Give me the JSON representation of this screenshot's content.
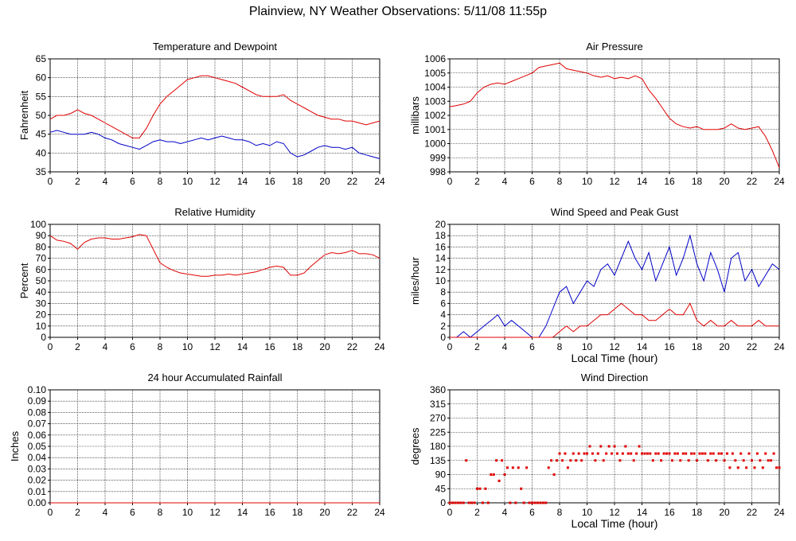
{
  "page": {
    "title": "Plainview, NY Weather Observations: 5/11/08 11:55p"
  },
  "colors": {
    "red": "#e00000",
    "blue": "#0000c8",
    "grid": "#000000"
  },
  "chart_data": [
    {
      "id": "temp",
      "type": "line",
      "title": "Temperature and Dewpoint",
      "xlabel": "",
      "ylabel": "Fahrenheit",
      "xlim": [
        0,
        24
      ],
      "ylim": [
        35,
        65
      ],
      "xticks": [
        0,
        2,
        4,
        6,
        8,
        10,
        12,
        14,
        16,
        18,
        20,
        22,
        24
      ],
      "yticks": [
        35,
        40,
        45,
        50,
        55,
        60,
        65
      ],
      "grid": true,
      "series": [
        {
          "color": "red",
          "style": "line",
          "x": [
            0,
            0.5,
            1,
            1.5,
            2,
            2.5,
            3,
            3.5,
            4,
            4.5,
            5,
            5.5,
            6,
            6.5,
            7,
            7.5,
            8,
            8.5,
            9,
            9.5,
            10,
            10.5,
            11,
            11.5,
            12,
            12.5,
            13,
            13.5,
            14,
            14.5,
            15,
            15.5,
            16,
            16.5,
            17,
            17.5,
            18,
            18.5,
            19,
            19.5,
            20,
            20.5,
            21,
            21.5,
            22,
            22.5,
            23,
            23.5,
            24
          ],
          "y": [
            49,
            50,
            50,
            50.5,
            51.5,
            50.5,
            50,
            49,
            48,
            47,
            46,
            45,
            44,
            44,
            46.5,
            50,
            53,
            55,
            56.5,
            58,
            59.5,
            60,
            60.5,
            60.5,
            60,
            59.5,
            59,
            58.5,
            57.5,
            56.5,
            55.5,
            55,
            55,
            55,
            55.5,
            54,
            53,
            52,
            51,
            50,
            49.5,
            49,
            49,
            48.5,
            48.5,
            48,
            47.5,
            48,
            48.5
          ]
        },
        {
          "color": "blue",
          "style": "line",
          "x": [
            0,
            0.5,
            1,
            1.5,
            2,
            2.5,
            3,
            3.5,
            4,
            4.5,
            5,
            5.5,
            6,
            6.5,
            7,
            7.5,
            8,
            8.5,
            9,
            9.5,
            10,
            10.5,
            11,
            11.5,
            12,
            12.5,
            13,
            13.5,
            14,
            14.5,
            15,
            15.5,
            16,
            16.5,
            17,
            17.5,
            18,
            18.5,
            19,
            19.5,
            20,
            20.5,
            21,
            21.5,
            22,
            22.5,
            23,
            23.5,
            24
          ],
          "y": [
            45.5,
            46,
            45.5,
            45,
            45,
            45,
            45.5,
            45,
            44,
            43.5,
            42.5,
            42,
            41.5,
            41,
            42,
            43,
            43.5,
            43,
            43,
            42.5,
            43,
            43.5,
            44,
            43.5,
            44,
            44.5,
            44,
            43.5,
            43.5,
            43,
            42,
            42.5,
            42,
            43,
            42.5,
            40,
            39,
            39.5,
            40.5,
            41.5,
            42,
            41.5,
            41.5,
            41,
            41.5,
            40,
            39.5,
            39,
            38.5
          ]
        }
      ]
    },
    {
      "id": "pressure",
      "type": "line",
      "title": "Air Pressure",
      "xlabel": "",
      "ylabel": "millibars",
      "xlim": [
        0,
        24
      ],
      "ylim": [
        998,
        1006
      ],
      "xticks": [
        0,
        2,
        4,
        6,
        8,
        10,
        12,
        14,
        16,
        18,
        20,
        22,
        24
      ],
      "yticks": [
        998,
        999,
        1000,
        1001,
        1002,
        1003,
        1004,
        1005,
        1006
      ],
      "grid": true,
      "series": [
        {
          "color": "red",
          "style": "line",
          "x": [
            0,
            0.5,
            1,
            1.5,
            2,
            2.5,
            3,
            3.5,
            4,
            4.5,
            5,
            5.5,
            6,
            6.5,
            7,
            7.5,
            8,
            8.5,
            9,
            9.5,
            10,
            10.5,
            11,
            11.5,
            12,
            12.5,
            13,
            13.5,
            14,
            14.5,
            15,
            15.5,
            16,
            16.5,
            17,
            17.5,
            18,
            18.5,
            19,
            19.5,
            20,
            20.5,
            21,
            21.5,
            22,
            22.5,
            23,
            23.5,
            24
          ],
          "y": [
            1002.6,
            1002.7,
            1002.8,
            1003,
            1003.6,
            1004,
            1004.2,
            1004.3,
            1004.2,
            1004.4,
            1004.6,
            1004.8,
            1005,
            1005.4,
            1005.5,
            1005.6,
            1005.7,
            1005.3,
            1005.2,
            1005.1,
            1005,
            1004.8,
            1004.7,
            1004.8,
            1004.6,
            1004.7,
            1004.6,
            1004.8,
            1004.6,
            1003.8,
            1003.2,
            1002.5,
            1001.8,
            1001.4,
            1001.2,
            1001.1,
            1001.2,
            1001,
            1001,
            1001,
            1001.1,
            1001.4,
            1001.1,
            1001,
            1001.1,
            1001.2,
            1000.5,
            999.5,
            998.3
          ]
        }
      ]
    },
    {
      "id": "humidity",
      "type": "line",
      "title": "Relative Humidity",
      "xlabel": "",
      "ylabel": "Percent",
      "xlim": [
        0,
        24
      ],
      "ylim": [
        0,
        100
      ],
      "xticks": [
        0,
        2,
        4,
        6,
        8,
        10,
        12,
        14,
        16,
        18,
        20,
        22,
        24
      ],
      "yticks": [
        0,
        10,
        20,
        30,
        40,
        50,
        60,
        70,
        80,
        90,
        100
      ],
      "grid": true,
      "series": [
        {
          "color": "red",
          "style": "line",
          "x": [
            0,
            0.5,
            1,
            1.5,
            2,
            2.5,
            3,
            3.5,
            4,
            4.5,
            5,
            5.5,
            6,
            6.5,
            7,
            7.5,
            8,
            8.5,
            9,
            9.5,
            10,
            10.5,
            11,
            11.5,
            12,
            12.5,
            13,
            13.5,
            14,
            14.5,
            15,
            15.5,
            16,
            16.5,
            17,
            17.5,
            18,
            18.5,
            19,
            19.5,
            20,
            20.5,
            21,
            21.5,
            22,
            22.5,
            23,
            23.5,
            24
          ],
          "y": [
            90,
            86,
            85,
            83,
            78,
            84,
            87,
            88,
            88,
            87,
            87,
            88,
            89,
            91,
            90,
            78,
            66,
            62,
            59,
            57,
            56,
            55,
            54,
            54,
            55,
            55,
            56,
            55,
            56,
            57,
            58,
            60,
            62,
            63,
            62,
            55,
            55,
            57,
            63,
            68,
            73,
            75,
            74,
            75,
            77,
            74,
            74,
            73,
            70
          ]
        }
      ]
    },
    {
      "id": "wind",
      "type": "line",
      "title": "Wind Speed and Peak Gust",
      "xlabel": "Local Time (hour)",
      "ylabel": "miles/hour",
      "xlim": [
        0,
        24
      ],
      "ylim": [
        0,
        20
      ],
      "xticks": [
        0,
        2,
        4,
        6,
        8,
        10,
        12,
        14,
        16,
        18,
        20,
        22,
        24
      ],
      "yticks": [
        0,
        2,
        4,
        6,
        8,
        10,
        12,
        14,
        16,
        18,
        20
      ],
      "grid": true,
      "series": [
        {
          "color": "blue",
          "style": "line",
          "x": [
            0,
            0.5,
            1,
            1.5,
            2,
            2.5,
            3,
            3.5,
            4,
            4.5,
            5,
            5.5,
            6,
            6.5,
            7,
            7.5,
            8,
            8.5,
            9,
            9.5,
            10,
            10.5,
            11,
            11.5,
            12,
            12.5,
            13,
            13.5,
            14,
            14.5,
            15,
            15.5,
            16,
            16.5,
            17,
            17.5,
            18,
            18.5,
            19,
            19.5,
            20,
            20.5,
            21,
            21.5,
            22,
            22.5,
            23,
            23.5,
            24
          ],
          "y": [
            0,
            0,
            1,
            0,
            1,
            2,
            3,
            4,
            2,
            3,
            2,
            1,
            0,
            0,
            2,
            5,
            8,
            9,
            6,
            8,
            10,
            9,
            12,
            13,
            11,
            14,
            17,
            14,
            12,
            15,
            10,
            13,
            16,
            11,
            14,
            18,
            13,
            10,
            15,
            12,
            8,
            14,
            15,
            10,
            12,
            9,
            11,
            13,
            12
          ]
        },
        {
          "color": "red",
          "style": "line",
          "x": [
            0,
            0.5,
            1,
            1.5,
            2,
            2.5,
            3,
            3.5,
            4,
            4.5,
            5,
            5.5,
            6,
            6.5,
            7,
            7.5,
            8,
            8.5,
            9,
            9.5,
            10,
            10.5,
            11,
            11.5,
            12,
            12.5,
            13,
            13.5,
            14,
            14.5,
            15,
            15.5,
            16,
            16.5,
            17,
            17.5,
            18,
            18.5,
            19,
            19.5,
            20,
            20.5,
            21,
            21.5,
            22,
            22.5,
            23,
            23.5,
            24
          ],
          "y": [
            0,
            0,
            0,
            0,
            0,
            0,
            0,
            0,
            0,
            0,
            0,
            0,
            0,
            0,
            0,
            0,
            1,
            2,
            1,
            2,
            2,
            3,
            4,
            4,
            5,
            6,
            5,
            4,
            4,
            3,
            3,
            4,
            5,
            4,
            4,
            6,
            3,
            2,
            3,
            2,
            2,
            3,
            2,
            2,
            2,
            3,
            2,
            2,
            2
          ]
        }
      ]
    },
    {
      "id": "rain",
      "type": "line",
      "title": "24 hour Accumulated Rainfall",
      "xlabel": "",
      "ylabel": "Inches",
      "xlim": [
        0,
        24
      ],
      "ylim": [
        0,
        0.1
      ],
      "xticks": [
        0,
        2,
        4,
        6,
        8,
        10,
        12,
        14,
        16,
        18,
        20,
        22,
        24
      ],
      "yticks": [
        0.0,
        0.01,
        0.02,
        0.03,
        0.04,
        0.05,
        0.06,
        0.07,
        0.08,
        0.09,
        0.1
      ],
      "ytick_labels": [
        "0.00",
        "0.01",
        "0.02",
        "0.03",
        "0.04",
        "0.05",
        "0.06",
        "0.07",
        "0.08",
        "0.09",
        "0.10"
      ],
      "grid": true,
      "series": [
        {
          "color": "red",
          "style": "line",
          "x": [
            0,
            24
          ],
          "y": [
            0,
            0
          ]
        }
      ]
    },
    {
      "id": "direction",
      "type": "scatter",
      "title": "Wind Direction",
      "xlabel": "Local Time (hour)",
      "ylabel": "degrees",
      "xlim": [
        0,
        24
      ],
      "ylim": [
        0,
        360
      ],
      "xticks": [
        0,
        2,
        4,
        6,
        8,
        10,
        12,
        14,
        16,
        18,
        20,
        22,
        24
      ],
      "yticks": [
        0,
        45,
        90,
        135,
        180,
        225,
        270,
        315,
        360
      ],
      "grid": true,
      "series": [
        {
          "color": "red",
          "style": "points",
          "x": [
            0,
            0.2,
            0.4,
            0.6,
            0.8,
            1,
            1.2,
            1.4,
            1.6,
            1.8,
            2,
            2.2,
            2.4,
            2.6,
            2.8,
            3,
            3.2,
            3.4,
            3.6,
            3.8,
            4,
            4.2,
            4.4,
            4.6,
            4.8,
            5,
            5.2,
            5.4,
            5.6,
            5.8,
            6,
            6.2,
            6.4,
            6.6,
            6.8,
            7,
            7.2,
            7.4,
            7.6,
            7.8,
            8,
            8.2,
            8.4,
            8.6,
            8.8,
            9,
            9.2,
            9.4,
            9.6,
            9.8,
            10,
            10.2,
            10.4,
            10.6,
            10.8,
            11,
            11.2,
            11.4,
            11.6,
            11.8,
            12,
            12.2,
            12.4,
            12.6,
            12.8,
            13,
            13.2,
            13.4,
            13.6,
            13.8,
            14,
            14.2,
            14.4,
            14.6,
            14.8,
            15,
            15.2,
            15.4,
            15.6,
            15.8,
            16,
            16.2,
            16.4,
            16.6,
            16.8,
            17,
            17.2,
            17.4,
            17.6,
            17.8,
            18,
            18.2,
            18.4,
            18.6,
            18.8,
            19,
            19.2,
            19.4,
            19.6,
            19.8,
            20,
            20.2,
            20.4,
            20.6,
            20.8,
            21,
            21.2,
            21.4,
            21.6,
            21.8,
            22,
            22.2,
            22.4,
            22.6,
            22.8,
            23,
            23.2,
            23.4,
            23.6,
            23.8,
            24
          ],
          "y": [
            0,
            0,
            0,
            0,
            0,
            0,
            135,
            0,
            0,
            0,
            45,
            45,
            0,
            45,
            0,
            90,
            90,
            135,
            70,
            135,
            90,
            112,
            0,
            112,
            0,
            112,
            45,
            0,
            112,
            0,
            0,
            0,
            0,
            0,
            0,
            0,
            112,
            135,
            90,
            135,
            157,
            135,
            157,
            112,
            135,
            157,
            135,
            157,
            135,
            157,
            157,
            180,
            157,
            135,
            157,
            180,
            135,
            157,
            180,
            157,
            180,
            157,
            135,
            157,
            180,
            157,
            157,
            135,
            157,
            180,
            157,
            157,
            157,
            157,
            135,
            157,
            157,
            135,
            157,
            157,
            157,
            135,
            157,
            157,
            135,
            157,
            157,
            135,
            157,
            157,
            135,
            157,
            157,
            157,
            135,
            157,
            157,
            135,
            157,
            157,
            135,
            157,
            112,
            157,
            135,
            112,
            157,
            135,
            112,
            157,
            135,
            112,
            157,
            135,
            112,
            157,
            135,
            135,
            157,
            112,
            112
          ]
        }
      ]
    }
  ]
}
